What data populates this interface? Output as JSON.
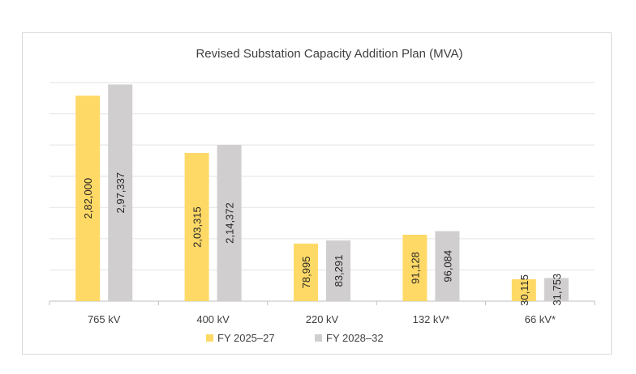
{
  "chart_data": {
    "type": "bar",
    "title": "Revised Substation Capacity Addition Plan (MVA)",
    "xlabel": "",
    "ylabel": "",
    "categories": [
      "765 kV",
      "400 kV",
      "220 kV",
      "132 kV*",
      "66 kV*"
    ],
    "ylim": [
      0,
      300000
    ],
    "grid": true,
    "legend_position": "bottom",
    "series": [
      {
        "name": "FY 2025–27",
        "color": "#FFD966",
        "values": [
          282000,
          203315,
          78995,
          91128,
          30115
        ],
        "labels": [
          "2,82,000",
          "2,03,315",
          "78,995",
          "91,128",
          "30,115"
        ]
      },
      {
        "name": "FY 2028–32",
        "color": "#D0CECE",
        "values": [
          297337,
          214372,
          83291,
          96084,
          31753
        ],
        "labels": [
          "2,97,337",
          "2,14,372",
          "83,291",
          "96,084",
          "31,753"
        ]
      }
    ]
  }
}
